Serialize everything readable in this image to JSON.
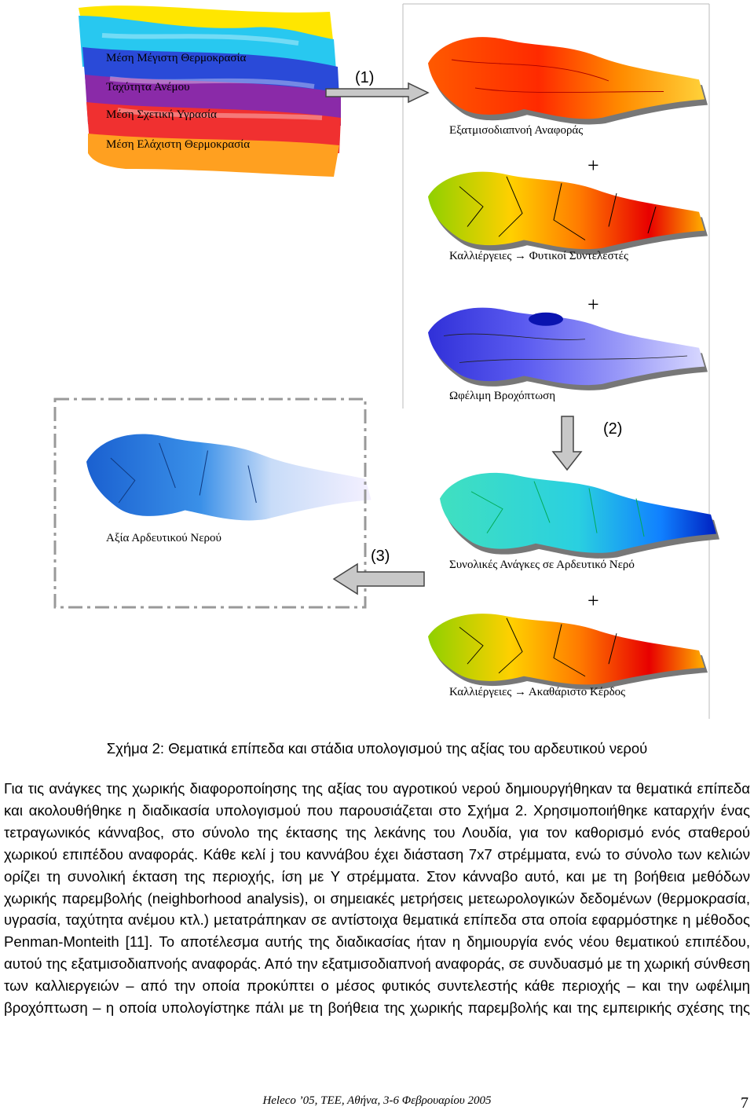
{
  "figure": {
    "stack_labels": [
      "Μέση Μέγιστη Θερμοκρασία",
      "Ταχύτητα Ανέμου",
      "Μέση Σχετική Υγρασία",
      "Μέση Ελάχιστη Θερμοκρασία"
    ],
    "map_labels": {
      "evapotranspiration": "Εξατμισοδιαπνοή Αναφοράς",
      "crop_coefficients": "Καλλιέργειες → Φυτικοί Συντελεστές",
      "rainfall": "Ωφέλιμη Βροχόπτωση",
      "water_needs": "Συνολικές Ανάγκες σε Αρδευτικό Νερό",
      "gross_profit": "Καλλιέργειες → Ακαθάριστο Κέρδος",
      "water_value": "Αξία Αρδευτικού Νερού"
    },
    "steps": [
      "(1)",
      "(2)",
      "(3)"
    ],
    "plus": [
      "+",
      "+",
      "+"
    ]
  },
  "caption": "Σχήμα 2: Θεματικά επίπεδα και στάδια υπολογισμού της αξίας του αρδευτικού νερού",
  "body": "Για τις ανάγκες της χωρικής διαφοροποίησης της αξίας του αγροτικού νερού δημιουργήθηκαν τα θεματικά επίπεδα και ακολουθήθηκε η διαδικασία υπολογισμού που παρουσιάζεται στο Σχήμα 2. Χρησιμοποιήθηκε καταρχήν ένας τετραγωνικός κάνναβος, στο σύνολο της έκτασης της λεκάνης του Λουδία, για τον καθορισμό ενός σταθερού χωρικού επιπέδου αναφοράς. Κάθε κελί j του καννάβου έχει διάσταση 7x7 στρέμματα, ενώ το σύνολο των κελιών ορίζει τη συνολική έκταση της περιοχής, ίση με Υ στρέμματα. Στον κάνναβο αυτό, και με τη βοήθεια μεθόδων χωρικής παρεμβολής (neighborhood analysis), οι σημειακές μετρήσεις μετεωρολογικών δεδομένων (θερμοκρασία, υγρασία, ταχύτητα ανέμου κτλ.) μετατράπηκαν σε αντίστοιχα θεματικά επίπεδα στα οποία εφαρμόστηκε η μέθοδος Penman-Monteith [11]. Το αποτέλεσμα αυτής της διαδικασίας ήταν η δημιουργία ενός νέου θεματικού επιπέδου, αυτού της εξατμισοδιαπνοής αναφοράς. Από την εξατμισοδιαπνοή αναφοράς, σε συνδυασμό με τη χωρική σύνθεση των καλλιεργειών – από την οποία προκύπτει ο μέσος φυτικός συντελεστής κάθε περιοχής – και την ωφέλιμη βροχόπτωση – η οποία υπολογίστηκε πάλι με τη βοήθεια της χωρικής παρεμβολής και της εμπειρικής σχέσης της",
  "footer": {
    "conference": "Heleco ’05, ΤΕΕ, Αθήνα, 3-6 Φεβρουαρίου 2005",
    "page": 7
  }
}
